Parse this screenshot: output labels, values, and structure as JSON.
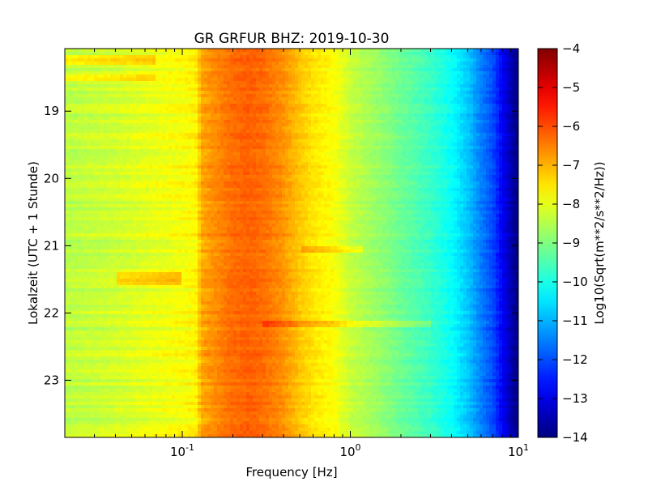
{
  "chart_data": {
    "type": "heatmap",
    "title": "GR GRFUR BHZ: 2019-10-30",
    "xlabel": "Frequency [Hz]",
    "ylabel": "Lokalzeit (UTC + 1 Stunde)",
    "x_scale": "log",
    "xlim": [
      0.02,
      10
    ],
    "x_ticks": [
      {
        "value": 0.1,
        "base": "10",
        "exp": "-1"
      },
      {
        "value": 1,
        "base": "10",
        "exp": "0"
      },
      {
        "value": 10,
        "base": "10",
        "exp": "1"
      }
    ],
    "ylim": [
      18.07,
      23.85
    ],
    "y_inverted": true,
    "y_ticks": [
      {
        "value": 19,
        "label": "19"
      },
      {
        "value": 20,
        "label": "20"
      },
      {
        "value": 21,
        "label": "21"
      },
      {
        "value": 22,
        "label": "22"
      },
      {
        "value": 23,
        "label": "23"
      }
    ],
    "colorbar": {
      "label": "Log10(Sqrt(m**2/s**2/Hz))",
      "colormap": "jet",
      "range": [
        -14,
        -4
      ],
      "ticks": [
        {
          "value": -4,
          "label": "−4"
        },
        {
          "value": -5,
          "label": "−5"
        },
        {
          "value": -6,
          "label": "−6"
        },
        {
          "value": -7,
          "label": "−7"
        },
        {
          "value": -8,
          "label": "−8"
        },
        {
          "value": -9,
          "label": "−9"
        },
        {
          "value": -10,
          "label": "−10"
        },
        {
          "value": -11,
          "label": "−11"
        },
        {
          "value": -12,
          "label": "−12"
        },
        {
          "value": -13,
          "label": "−13"
        },
        {
          "value": -14,
          "label": "−14"
        }
      ]
    },
    "spectrum_profile": {
      "frequency_hz": [
        0.02,
        0.04,
        0.06,
        0.08,
        0.1,
        0.12,
        0.13,
        0.16,
        0.2,
        0.25,
        0.3,
        0.4,
        0.5,
        0.6,
        0.8,
        1.0,
        1.5,
        2.0,
        3.0,
        4.0,
        5.0,
        6.0,
        7.0,
        8.0,
        9.0,
        10.0
      ],
      "log10_amplitude": [
        -8.4,
        -8.2,
        -8.0,
        -7.9,
        -7.8,
        -7.7,
        -6.9,
        -6.6,
        -6.3,
        -6.2,
        -6.3,
        -6.7,
        -7.2,
        -7.5,
        -7.8,
        -8.3,
        -8.8,
        -9.2,
        -9.7,
        -10.2,
        -10.8,
        -11.5,
        -12.0,
        -12.8,
        -13.5,
        -14.0
      ]
    },
    "time_anomalies": [
      {
        "time": 18.25,
        "fmin": 0.02,
        "fmax": 0.07,
        "delta": 0.6
      },
      {
        "time": 18.5,
        "fmin": 0.02,
        "fmax": 0.07,
        "delta": 0.5
      },
      {
        "time": 21.45,
        "fmin": 0.04,
        "fmax": 0.1,
        "delta": 0.7
      },
      {
        "time": 21.55,
        "fmin": 0.04,
        "fmax": 0.1,
        "delta": 0.7
      },
      {
        "time": 22.17,
        "fmin": 0.3,
        "fmax": 3.0,
        "delta": 0.5
      },
      {
        "time": 21.05,
        "fmin": 0.5,
        "fmax": 1.2,
        "delta": 0.5
      }
    ],
    "grid": false
  }
}
